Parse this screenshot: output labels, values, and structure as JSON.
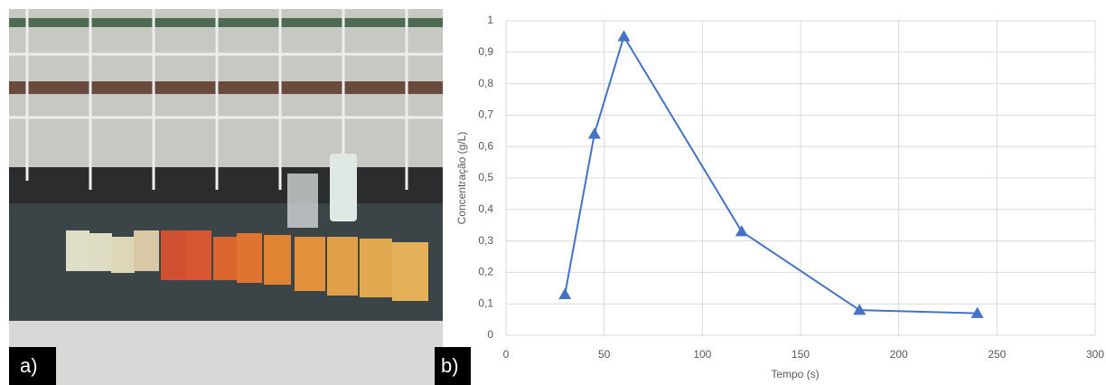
{
  "panel_labels": [
    "a)",
    "b)"
  ],
  "chart_data": {
    "type": "line",
    "marker": "triangle",
    "color": "#4472c4",
    "x_label": "Tempo (s)",
    "y_label": "Concentração (g/L)",
    "x": [
      30,
      45,
      60,
      120,
      180,
      240
    ],
    "values": [
      0.13,
      0.64,
      0.95,
      0.33,
      0.08,
      0.07
    ],
    "xlim": [
      0,
      300
    ],
    "xticks": [
      0,
      50,
      100,
      150,
      200,
      250,
      300
    ],
    "ylim": [
      0,
      1
    ],
    "yticks": [
      0,
      {
        "value": 0.1,
        "label": "0,1"
      },
      {
        "value": 0.2,
        "label": "0,2"
      },
      {
        "value": 0.3,
        "label": "0,3"
      },
      {
        "value": 0.4,
        "label": "0,4"
      },
      {
        "value": 0.5,
        "label": "0,5"
      },
      {
        "value": 0.6,
        "label": "0,6"
      },
      {
        "value": 0.7,
        "label": "0,7"
      },
      {
        "value": 0.8,
        "label": "0,8"
      },
      {
        "value": 0.9,
        "label": "0,9"
      },
      1
    ],
    "grid": true
  }
}
